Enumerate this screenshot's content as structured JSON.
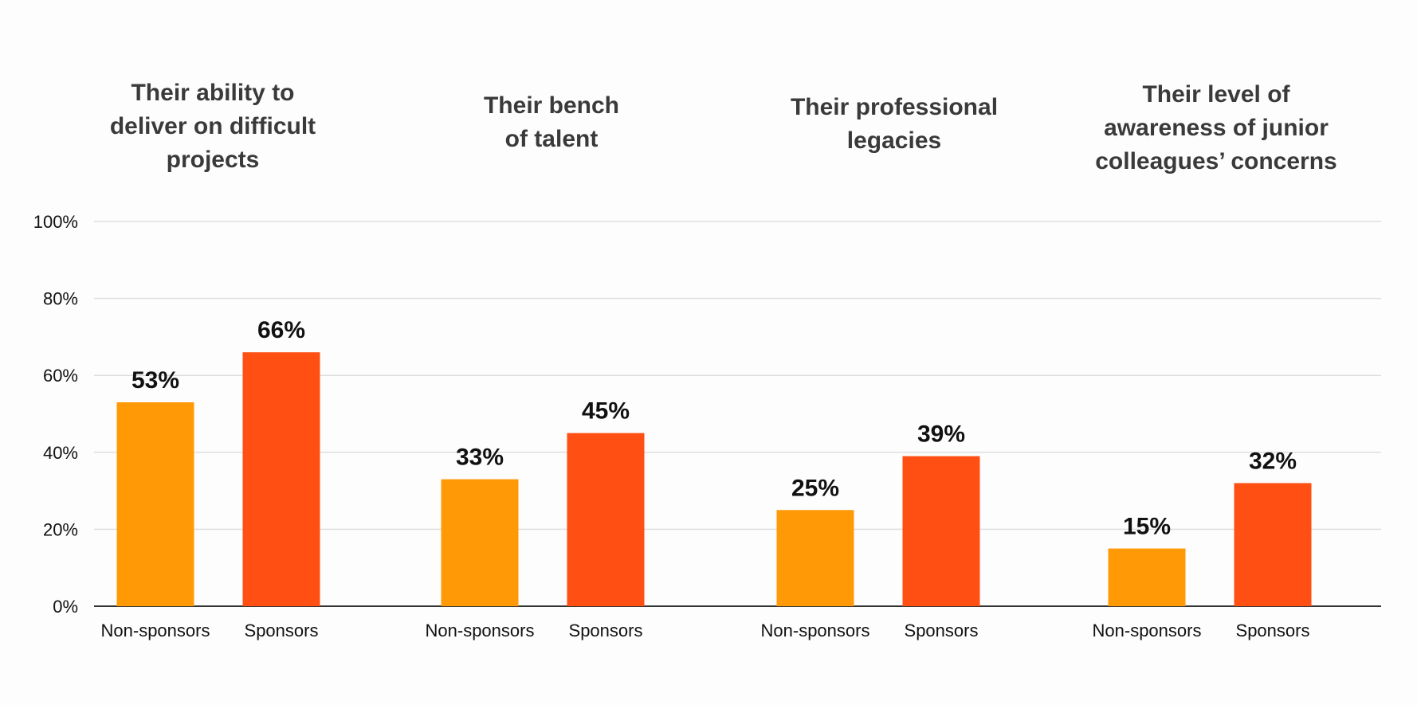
{
  "chart_data": {
    "type": "bar",
    "title": "",
    "xlabel": "",
    "ylabel": "",
    "ylim": [
      0,
      100
    ],
    "yticks": [
      "0%",
      "20%",
      "40%",
      "60%",
      "80%",
      "100%"
    ],
    "grid": true,
    "groups": [
      {
        "title": "Their ability to\ndeliver on difficult\nprojects",
        "categories": [
          "Non-sponsors",
          "Sponsors"
        ],
        "values": [
          53,
          66
        ],
        "labels": [
          "53%",
          "66%"
        ]
      },
      {
        "title": "Their bench\nof talent",
        "categories": [
          "Non-sponsors",
          "Sponsors"
        ],
        "values": [
          33,
          45
        ],
        "labels": [
          "33%",
          "45%"
        ]
      },
      {
        "title": "Their professional\nlegacies",
        "categories": [
          "Non-sponsors",
          "Sponsors"
        ],
        "values": [
          25,
          39
        ],
        "labels": [
          "25%",
          "39%"
        ]
      },
      {
        "title": "Their level of\nawareness of junior\ncolleagues’ concerns",
        "categories": [
          "Non-sponsors",
          "Sponsors"
        ],
        "values": [
          15,
          32
        ],
        "labels": [
          "15%",
          "32%"
        ]
      }
    ],
    "colors": {
      "Non-sponsors": "#ff9a06",
      "Sponsors": "#ff4f12"
    }
  }
}
